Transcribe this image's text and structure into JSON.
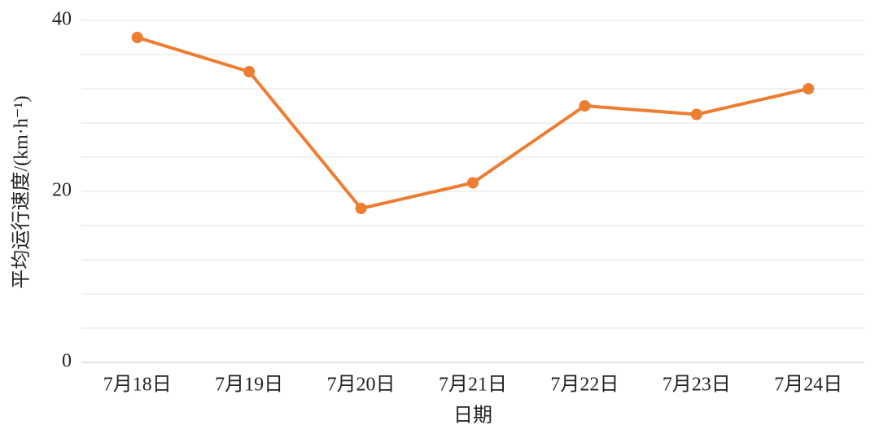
{
  "chart_data": {
    "type": "line",
    "y_axis_label": "平均运行速度/(km·h⁻¹)",
    "x_axis_label": "日期",
    "categories": [
      "7月18日",
      "7月19日",
      "7月20日",
      "7月21日",
      "7月22日",
      "7月23日",
      "7月24日"
    ],
    "series": [
      {
        "name": "平均运行速度",
        "color": "#ed7d31",
        "values": [
          38,
          34,
          18,
          21,
          30,
          29,
          32
        ]
      }
    ],
    "ylim": [
      0,
      40
    ],
    "yticks": [
      0,
      20,
      40
    ],
    "minor_grid": [
      4,
      8,
      12,
      16,
      24,
      28,
      32,
      36
    ],
    "grid": true
  }
}
